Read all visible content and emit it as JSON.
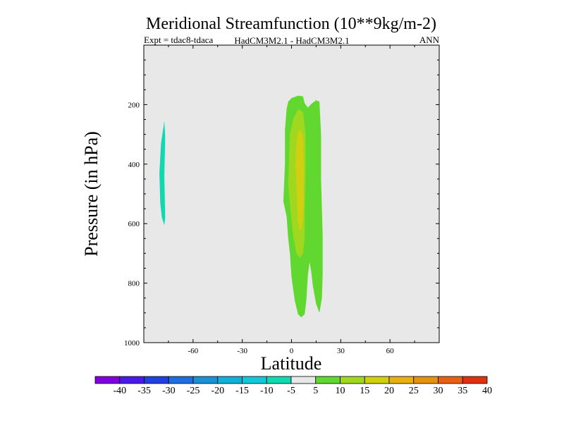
{
  "chart_data": {
    "type": "contour",
    "title": "Meridional Streamfunction (10**9kg/m-2)",
    "subtitle_left": "Expt = tdac8-tdaca",
    "subtitle_center": "HadCM3M2.1 - HadCM3M2.1",
    "subtitle_right": "ANN",
    "xlabel": "Latitude",
    "ylabel": "Pressure (in hPa)",
    "xlim": [
      -90,
      90
    ],
    "ylim": [
      1000,
      0
    ],
    "xticks": [
      -60,
      -30,
      0,
      30,
      60
    ],
    "xtick_labels": [
      "-60",
      "-30",
      "0",
      "30",
      "60"
    ],
    "yticks": [
      200,
      400,
      600,
      800,
      1000
    ],
    "ytick_labels": [
      "200",
      "400",
      "600",
      "800",
      "1000"
    ],
    "background_color": "#e8e8e8",
    "colorbar": {
      "levels": [
        "-40",
        "-35",
        "-30",
        "-25",
        "-20",
        "-15",
        "-10",
        "-5",
        "5",
        "10",
        "15",
        "20",
        "25",
        "30",
        "35",
        "40"
      ],
      "colors": [
        "#8000e0",
        "#4a1ae6",
        "#2040e0",
        "#1a70e0",
        "#1a90d8",
        "#10b0d8",
        "#10c8d8",
        "#10d8b0",
        "#e8e8e8",
        "#60d830",
        "#a0d820",
        "#d0d010",
        "#e8b010",
        "#e89010",
        "#e86010",
        "#e03010"
      ]
    },
    "regions": [
      {
        "name": "negative-cell-southern",
        "level": "-10 to -5",
        "color": "#10d8b0",
        "points": [
          [
            -80,
            530
          ],
          [
            -80.5,
            430
          ],
          [
            -79.5,
            330
          ],
          [
            -77.5,
            255
          ],
          [
            -77,
            310
          ],
          [
            -77.5,
            440
          ],
          [
            -77,
            580
          ],
          [
            -77.5,
            605
          ],
          [
            -79,
            580
          ]
        ]
      },
      {
        "name": "positive-cell-5-10",
        "level": "5 to 10",
        "color": "#60d830",
        "points": [
          [
            -5,
            525
          ],
          [
            -4,
            400
          ],
          [
            -4,
            285
          ],
          [
            -3,
            215
          ],
          [
            -2,
            190
          ],
          [
            0,
            178
          ],
          [
            4,
            170
          ],
          [
            7,
            172
          ],
          [
            8,
            195
          ],
          [
            10,
            210
          ],
          [
            12,
            198
          ],
          [
            15,
            185
          ],
          [
            17,
            190
          ],
          [
            18,
            300
          ],
          [
            18,
            450
          ],
          [
            19,
            640
          ],
          [
            19,
            770
          ],
          [
            18.5,
            850
          ],
          [
            17,
            900
          ],
          [
            15,
            870
          ],
          [
            13,
            810
          ],
          [
            12,
            760
          ],
          [
            11,
            730
          ],
          [
            10,
            770
          ],
          [
            9,
            860
          ],
          [
            8,
            905
          ],
          [
            6,
            915
          ],
          [
            4,
            905
          ],
          [
            2,
            860
          ],
          [
            0,
            780
          ],
          [
            -1,
            700
          ],
          [
            -2,
            650
          ],
          [
            -3,
            575
          ]
        ]
      },
      {
        "name": "positive-cell-10-15",
        "level": "10 to 15",
        "color": "#a0d820",
        "points": [
          [
            -2,
            470
          ],
          [
            -1.5,
            380
          ],
          [
            -1,
            300
          ],
          [
            1,
            250
          ],
          [
            4,
            215
          ],
          [
            7,
            225
          ],
          [
            8.5,
            300
          ],
          [
            8.5,
            420
          ],
          [
            8,
            540
          ],
          [
            8,
            650
          ],
          [
            7,
            700
          ],
          [
            5,
            715
          ],
          [
            3,
            700
          ],
          [
            1,
            640
          ],
          [
            -0.5,
            560
          ]
        ]
      },
      {
        "name": "positive-cell-15-20",
        "level": "15 to 20",
        "color": "#d0d010",
        "points": [
          [
            3,
            480
          ],
          [
            2.5,
            400
          ],
          [
            3,
            330
          ],
          [
            4,
            290
          ],
          [
            5.5,
            285
          ],
          [
            7,
            310
          ],
          [
            7.5,
            400
          ],
          [
            7.5,
            520
          ],
          [
            7,
            580
          ],
          [
            6,
            620
          ],
          [
            5,
            620
          ],
          [
            4,
            590
          ]
        ]
      }
    ]
  }
}
